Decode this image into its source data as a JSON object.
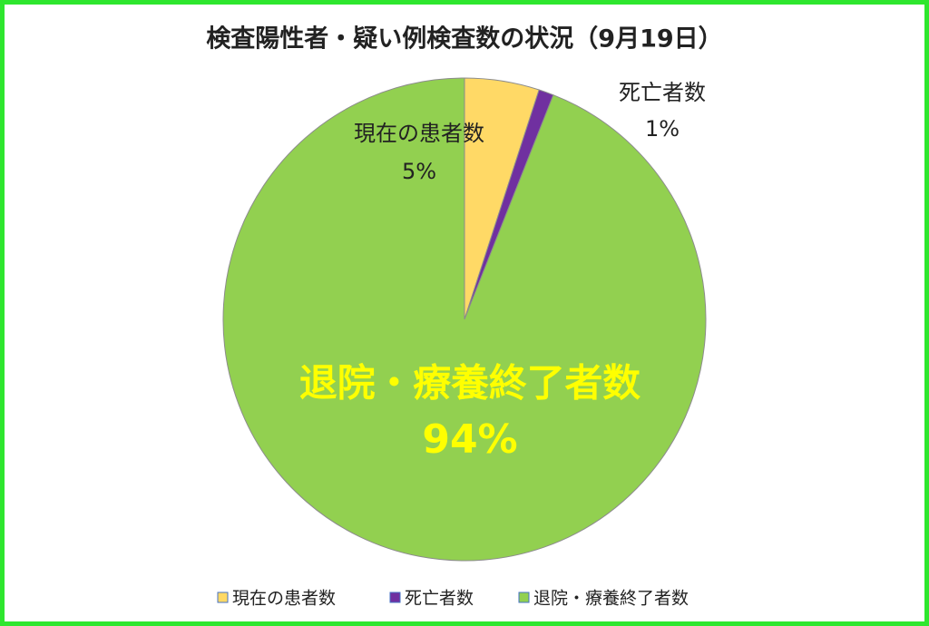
{
  "chart_data": {
    "type": "pie",
    "title": "検査陽性者・疑い例検査数の状況（9月19日）",
    "categories": [
      "現在の患者数",
      "死亡者数",
      "退院・療養終了者数"
    ],
    "values": [
      5,
      1,
      94
    ],
    "value_labels": [
      "5%",
      "1%",
      "94%"
    ],
    "colors": [
      "#ffd966",
      "#7030a0",
      "#92d050"
    ],
    "legend": "bottom"
  }
}
